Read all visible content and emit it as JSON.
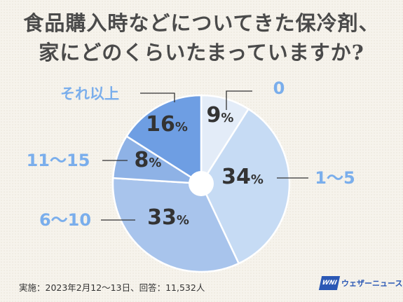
{
  "title_lines": [
    "食品購入時などについてきた保冷剤、",
    "家にどのくらいたまっていますか?"
  ],
  "chart_data": {
    "type": "pie",
    "title": "食品購入時などについてきた保冷剤、家にどのくらいたまっていますか?",
    "categories": [
      "0",
      "1～5",
      "6～10",
      "11～15",
      "それ以上"
    ],
    "values": [
      9,
      34,
      33,
      8,
      16
    ],
    "value_labels": [
      "9",
      "34",
      "33",
      "8",
      "16"
    ],
    "unit": "%",
    "colors": [
      "#e3ecf8",
      "#c6dbf4",
      "#a8c4ec",
      "#8eb2e6",
      "#6e9ee3"
    ],
    "label_color": "#7aaeec",
    "value_text_color": "#333333"
  },
  "footnote": "実施：2023年2月12～13日、回答：11,532人",
  "logo": {
    "mark": "WNI",
    "text": "ウェザーニュース"
  }
}
